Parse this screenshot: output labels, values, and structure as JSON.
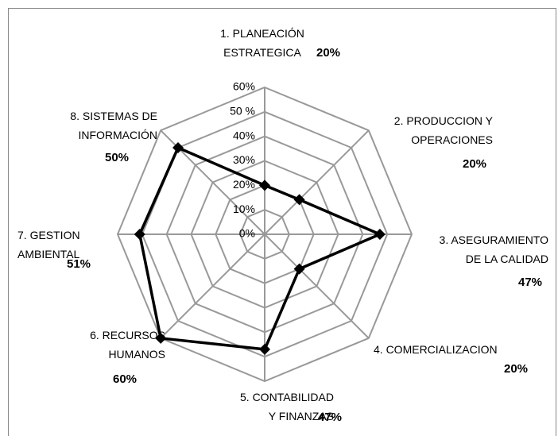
{
  "chart_data": {
    "type": "radar",
    "categories": [
      "1. PLANEACIÓN\nESTRATEGICA",
      "2.   PRODUCCION Y\nOPERACIONES",
      "3.  ASEGURAMIENTO\nDE LA CALIDAD",
      "4. COMERCIALIZACION",
      "5. CONTABILIDAD\nY FINANZAS",
      "6. RECURSOS\nHUMANOS",
      "7.   GESTION\nAMBIENTAL",
      "8. SISTEMAS DE\nINFORMACIÓN"
    ],
    "values": [
      20,
      20,
      47,
      20,
      47,
      60,
      51,
      50
    ],
    "value_labels": [
      "20%",
      "20%",
      "47%",
      "20%",
      "47%",
      "60%",
      "51%",
      "50%"
    ],
    "color": "#000000",
    "grid_color": "#999999",
    "ylim": [
      0,
      60
    ],
    "yticks": [
      {
        "value": 0,
        "label": "0%"
      },
      {
        "value": 10,
        "label": "10%"
      },
      {
        "value": 20,
        "label": "20%"
      },
      {
        "value": 30,
        "label": "30%"
      },
      {
        "value": 40,
        "label": "40%"
      },
      {
        "value": 50,
        "label": "50 %"
      },
      {
        "value": 60,
        "label": "60%"
      }
    ],
    "grid": true
  }
}
